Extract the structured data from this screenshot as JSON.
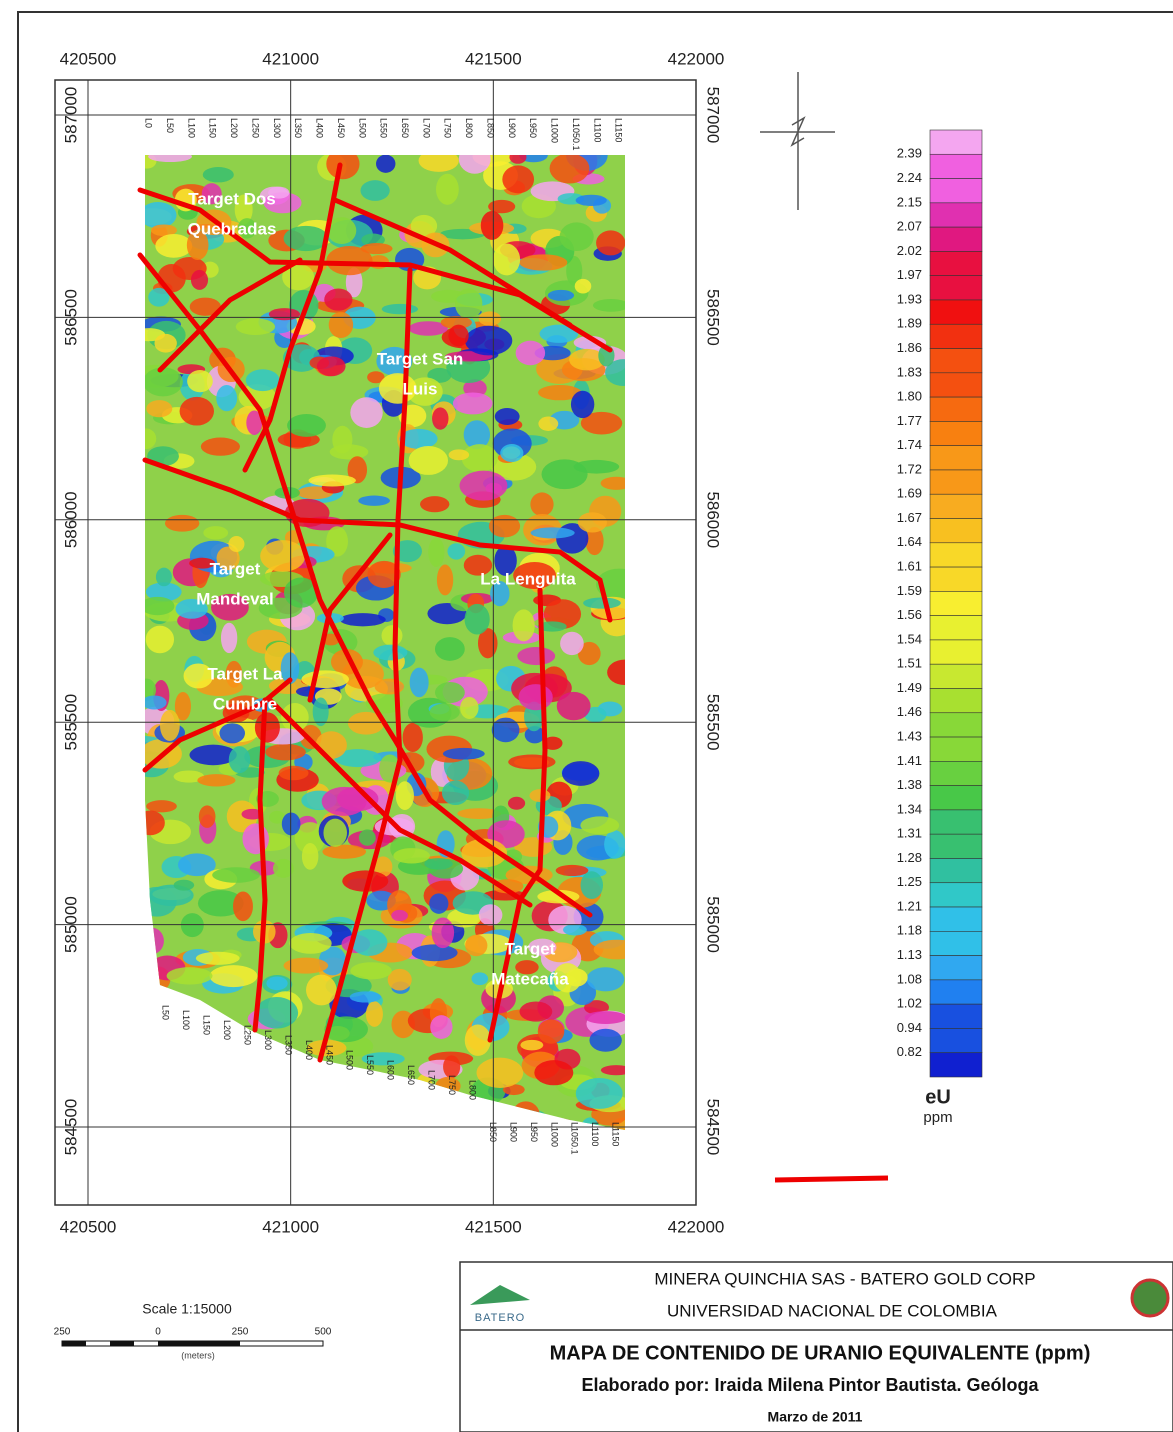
{
  "map": {
    "x_ticks": [
      420500,
      421000,
      421500,
      422000
    ],
    "y_ticks": [
      587000,
      586500,
      586000,
      585500,
      585000,
      584500
    ],
    "line_labels_top": [
      "L0",
      "L50",
      "L100",
      "L150",
      "L200",
      "L250",
      "L300",
      "L350",
      "L400",
      "L450",
      "L500",
      "L550",
      "L650",
      "L700",
      "L750",
      "L800",
      "L850",
      "L900",
      "L950",
      "L1000",
      "L1050.1",
      "L1100",
      "L1150"
    ],
    "line_labels_bottom": [
      "L50",
      "L100",
      "L150",
      "L200",
      "L250",
      "L300",
      "L350",
      "L400",
      "L450",
      "L500",
      "L550",
      "L600",
      "L650",
      "L700",
      "L750",
      "L800",
      "L850",
      "L900",
      "L950",
      "L1000",
      "L1050.1",
      "L1100",
      "L1150"
    ],
    "targets": [
      {
        "lines": [
          "Target Dos",
          "Quebradas"
        ]
      },
      {
        "lines": [
          "Target San",
          "Luis"
        ]
      },
      {
        "lines": [
          "Target",
          "Mandeval"
        ]
      },
      {
        "lines": [
          "La Lenguita"
        ]
      },
      {
        "lines": [
          "Target La",
          "Cumbre"
        ]
      },
      {
        "lines": [
          "Target",
          "Matecaña"
        ]
      }
    ]
  },
  "legend": {
    "labels": [
      "2.39",
      "2.24",
      "2.15",
      "2.07",
      "2.02",
      "1.97",
      "1.93",
      "1.89",
      "1.86",
      "1.83",
      "1.80",
      "1.77",
      "1.74",
      "1.72",
      "1.69",
      "1.67",
      "1.64",
      "1.61",
      "1.59",
      "1.56",
      "1.54",
      "1.51",
      "1.49",
      "1.46",
      "1.43",
      "1.41",
      "1.38",
      "1.34",
      "1.31",
      "1.28",
      "1.25",
      "1.21",
      "1.18",
      "1.13",
      "1.08",
      "1.02",
      "0.94",
      "0.82"
    ],
    "variable": "eU",
    "unit": "ppm"
  },
  "scale": {
    "title": "Scale 1:15000",
    "ticks": [
      "250",
      "0",
      "250",
      "500"
    ],
    "unit": "(meters)"
  },
  "title_block": {
    "logo": "BATERO",
    "company": "MINERA QUINCHIA SAS - BATERO GOLD CORP",
    "university": "UNIVERSIDAD NACIONAL DE COLOMBIA",
    "title": "MAPA DE CONTENIDO DE URANIO EQUIVALENTE (ppm)",
    "author": "Elaborado por: Iraida Milena Pintor Bautista. Geóloga",
    "date": "Marzo de 2011"
  }
}
